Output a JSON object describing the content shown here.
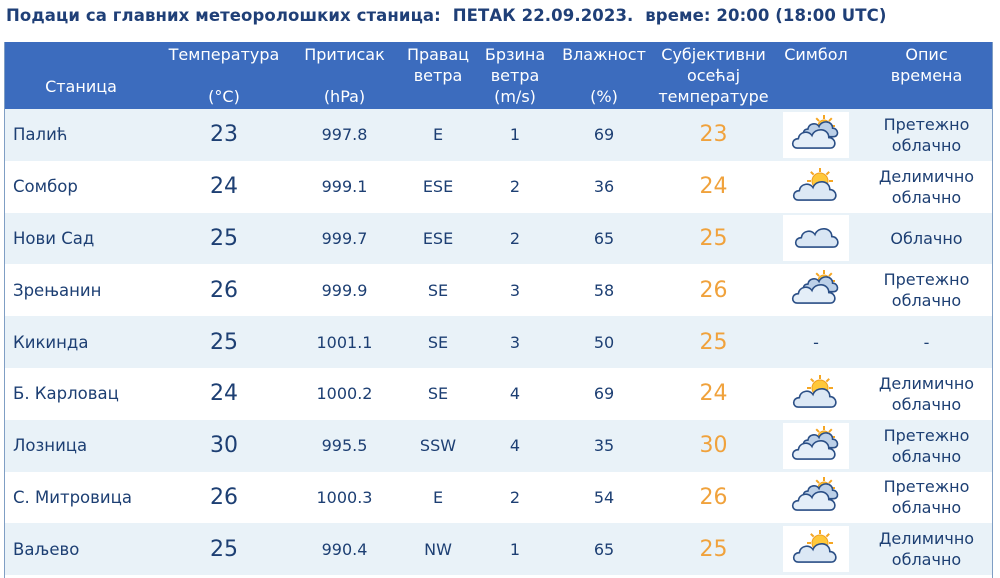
{
  "header": {
    "title": "Подаци са главних метеоролошких станица:",
    "day_date": "ПЕТАК 22.09.2023.",
    "time": "време: 20:00 (18:00 UTC)"
  },
  "columns": {
    "station": "Станица",
    "temp_line1": "Температура",
    "temp_unit": "(°C)",
    "press_line1": "Притисак",
    "press_unit": "(hPa)",
    "dir_line1": "Правац",
    "dir_line2": "ветра",
    "speed_line1": "Брзина",
    "speed_line2": "ветра",
    "speed_unit": "(m/s)",
    "hum_line1": "Влажност",
    "hum_unit": "(%)",
    "feel_line1": "Субјективни",
    "feel_line2": "осећај",
    "feel_line3": "температуре",
    "symbol": "Симбол",
    "desc_line1": "Опис",
    "desc_line2": "времена"
  },
  "rows": [
    {
      "station": "Палић",
      "temp": "23",
      "pressure": "997.8",
      "dir": "E",
      "speed": "1",
      "humidity": "69",
      "feel": "23",
      "icon": "mostly-cloudy-icon",
      "desc1": "Претежно",
      "desc2": "облачно"
    },
    {
      "station": "Сомбор",
      "temp": "24",
      "pressure": "999.1",
      "dir": "ESE",
      "speed": "2",
      "humidity": "36",
      "feel": "24",
      "icon": "partly-cloudy-icon",
      "desc1": "Делимично",
      "desc2": "облачно"
    },
    {
      "station": "Нови Сад",
      "temp": "25",
      "pressure": "999.7",
      "dir": "ESE",
      "speed": "2",
      "humidity": "65",
      "feel": "25",
      "icon": "cloudy-icon",
      "desc1": "Облачно",
      "desc2": ""
    },
    {
      "station": "Зрењанин",
      "temp": "26",
      "pressure": "999.9",
      "dir": "SE",
      "speed": "3",
      "humidity": "58",
      "feel": "26",
      "icon": "mostly-cloudy-icon",
      "desc1": "Претежно",
      "desc2": "облачно"
    },
    {
      "station": "Кикинда",
      "temp": "25",
      "pressure": "1001.1",
      "dir": "SE",
      "speed": "3",
      "humidity": "50",
      "feel": "25",
      "icon": "none",
      "symbol_text": "-",
      "desc1": "-",
      "desc2": ""
    },
    {
      "station": "Б. Карловац",
      "temp": "24",
      "pressure": "1000.2",
      "dir": "SE",
      "speed": "4",
      "humidity": "69",
      "feel": "24",
      "icon": "partly-cloudy-icon",
      "desc1": "Делимично",
      "desc2": "облачно"
    },
    {
      "station": "Лозница",
      "temp": "30",
      "pressure": "995.5",
      "dir": "SSW",
      "speed": "4",
      "humidity": "35",
      "feel": "30",
      "icon": "mostly-cloudy-icon",
      "desc1": "Претежно",
      "desc2": "облачно"
    },
    {
      "station": "С. Митровица",
      "temp": "26",
      "pressure": "1000.3",
      "dir": "E",
      "speed": "2",
      "humidity": "54",
      "feel": "26",
      "icon": "mostly-cloudy-icon",
      "desc1": "Претежно",
      "desc2": "облачно"
    },
    {
      "station": "Ваљево",
      "temp": "25",
      "pressure": "990.4",
      "dir": "NW",
      "speed": "1",
      "humidity": "65",
      "feel": "25",
      "icon": "partly-cloudy-icon",
      "desc1": "Делимично",
      "desc2": "облачно"
    }
  ],
  "colors": {
    "header_bg": "#3c6cbe",
    "row_alt": "#e9f2f8",
    "text": "#1d3f73",
    "feel_text": "#f0a23c"
  }
}
